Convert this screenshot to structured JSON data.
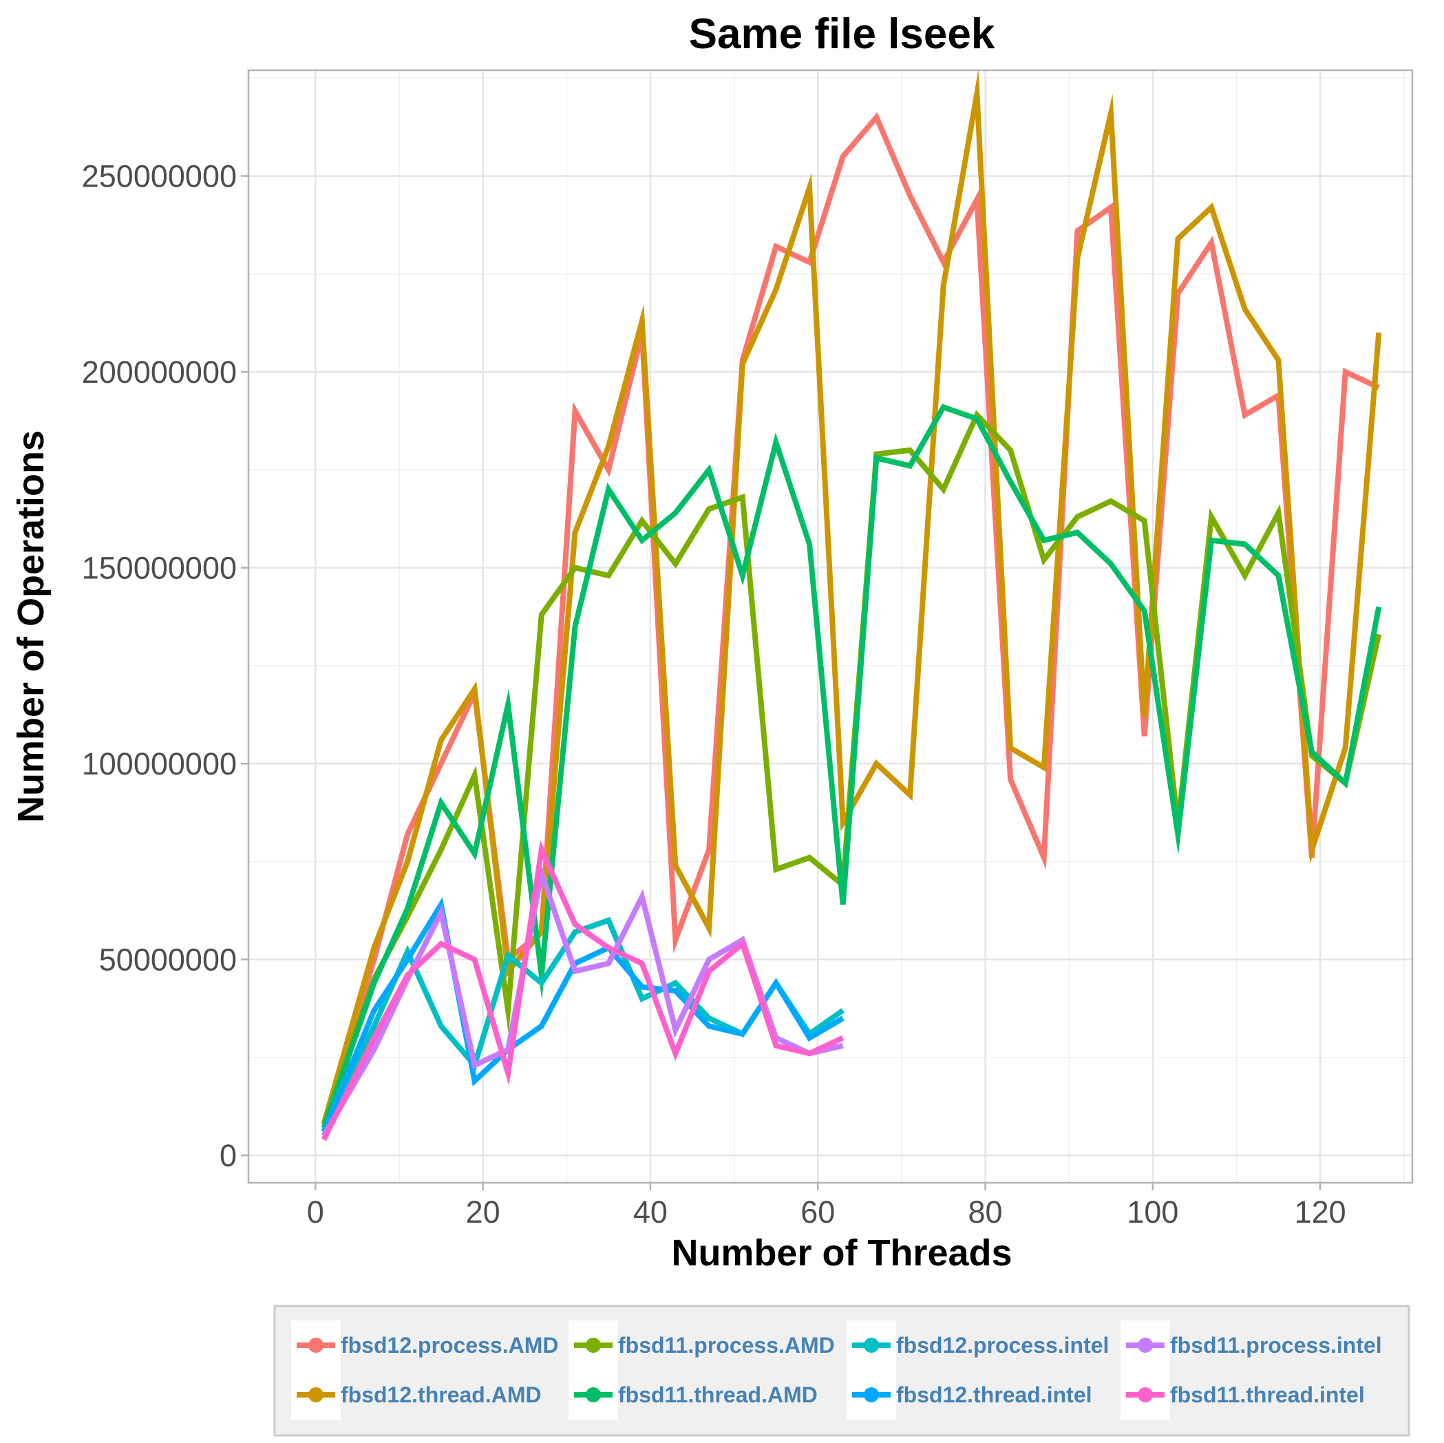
{
  "chart_data": {
    "type": "line",
    "title": "Same file lseek",
    "xlabel": "Number of Threads",
    "ylabel": "Number of Operations",
    "xlim": [
      -8,
      131
    ],
    "ylim": [
      -7000000,
      277000000
    ],
    "x_ticks": [
      0,
      20,
      40,
      60,
      80,
      100,
      120
    ],
    "y_ticks": [
      0,
      50000000,
      100000000,
      150000000,
      200000000,
      250000000
    ],
    "x_tick_labels": [
      "0",
      "20",
      "40",
      "60",
      "80",
      "100",
      "120"
    ],
    "y_tick_labels": [
      "0",
      "50000000",
      "100000000",
      "150000000",
      "200000000",
      "250000000"
    ],
    "grid": true,
    "legend_position": "bottom",
    "series": [
      {
        "name": "fbsd12.process.AMD",
        "color": "#F8766D",
        "points": [
          [
            1,
            8000000
          ],
          [
            7,
            50000000
          ],
          [
            11,
            82000000
          ],
          [
            15,
            100000000
          ],
          [
            19,
            118000000
          ],
          [
            23,
            50000000
          ],
          [
            27,
            57000000
          ],
          [
            31,
            190000000
          ],
          [
            35,
            175000000
          ],
          [
            39,
            210000000
          ],
          [
            43,
            55000000
          ],
          [
            47,
            78000000
          ],
          [
            51,
            203000000
          ],
          [
            55,
            232000000
          ],
          [
            59,
            228000000
          ],
          [
            63,
            255000000
          ],
          [
            67,
            265000000
          ],
          [
            71,
            245000000
          ],
          [
            75,
            228000000
          ],
          [
            79,
            244000000
          ],
          [
            83,
            96000000
          ],
          [
            87,
            76000000
          ],
          [
            91,
            236000000
          ],
          [
            95,
            242000000
          ],
          [
            99,
            107000000
          ],
          [
            103,
            220000000
          ],
          [
            107,
            233000000
          ],
          [
            111,
            189000000
          ],
          [
            115,
            194000000
          ],
          [
            119,
            76000000
          ],
          [
            123,
            200000000
          ],
          [
            127,
            196000000
          ]
        ]
      },
      {
        "name": "fbsd12.thread.AMD",
        "color": "#CD9600",
        "points": [
          [
            1,
            8000000
          ],
          [
            7,
            53000000
          ],
          [
            11,
            75000000
          ],
          [
            15,
            106000000
          ],
          [
            19,
            119000000
          ],
          [
            23,
            47000000
          ],
          [
            27,
            57000000
          ],
          [
            31,
            159000000
          ],
          [
            35,
            181000000
          ],
          [
            39,
            213000000
          ],
          [
            43,
            74000000
          ],
          [
            47,
            58000000
          ],
          [
            51,
            202000000
          ],
          [
            55,
            221000000
          ],
          [
            59,
            247000000
          ],
          [
            63,
            85000000
          ],
          [
            67,
            100000000
          ],
          [
            71,
            92000000
          ],
          [
            75,
            222000000
          ],
          [
            79,
            271000000
          ],
          [
            83,
            104000000
          ],
          [
            87,
            99000000
          ],
          [
            91,
            229000000
          ],
          [
            95,
            266000000
          ],
          [
            99,
            112000000
          ],
          [
            103,
            234000000
          ],
          [
            107,
            242000000
          ],
          [
            111,
            216000000
          ],
          [
            115,
            203000000
          ],
          [
            119,
            78000000
          ],
          [
            123,
            104000000
          ],
          [
            127,
            210000000
          ]
        ]
      },
      {
        "name": "fbsd11.process.AMD",
        "color": "#7CAE00",
        "points": [
          [
            1,
            8000000
          ],
          [
            7,
            45000000
          ],
          [
            11,
            61000000
          ],
          [
            15,
            78000000
          ],
          [
            19,
            97000000
          ],
          [
            23,
            37000000
          ],
          [
            27,
            138000000
          ],
          [
            31,
            150000000
          ],
          [
            35,
            148000000
          ],
          [
            39,
            162000000
          ],
          [
            43,
            151000000
          ],
          [
            47,
            165000000
          ],
          [
            51,
            168000000
          ],
          [
            55,
            73000000
          ],
          [
            59,
            76000000
          ],
          [
            63,
            69000000
          ],
          [
            67,
            179000000
          ],
          [
            71,
            180000000
          ],
          [
            75,
            170000000
          ],
          [
            79,
            189000000
          ],
          [
            83,
            180000000
          ],
          [
            87,
            152000000
          ],
          [
            91,
            163000000
          ],
          [
            95,
            167000000
          ],
          [
            99,
            162000000
          ],
          [
            103,
            84000000
          ],
          [
            107,
            163000000
          ],
          [
            111,
            148000000
          ],
          [
            115,
            164000000
          ],
          [
            119,
            102000000
          ],
          [
            123,
            95000000
          ],
          [
            127,
            133000000
          ]
        ]
      },
      {
        "name": "fbsd11.thread.AMD",
        "color": "#00BE67",
        "points": [
          [
            1,
            7000000
          ],
          [
            7,
            44000000
          ],
          [
            11,
            63000000
          ],
          [
            15,
            90000000
          ],
          [
            19,
            77000000
          ],
          [
            23,
            115000000
          ],
          [
            27,
            46000000
          ],
          [
            31,
            135000000
          ],
          [
            35,
            170000000
          ],
          [
            39,
            157000000
          ],
          [
            43,
            164000000
          ],
          [
            47,
            175000000
          ],
          [
            51,
            148000000
          ],
          [
            55,
            182000000
          ],
          [
            59,
            156000000
          ],
          [
            63,
            64000000
          ],
          [
            67,
            178000000
          ],
          [
            71,
            176000000
          ],
          [
            75,
            191000000
          ],
          [
            79,
            188000000
          ],
          [
            83,
            172000000
          ],
          [
            87,
            157000000
          ],
          [
            91,
            159000000
          ],
          [
            95,
            151000000
          ],
          [
            99,
            139000000
          ],
          [
            103,
            82000000
          ],
          [
            107,
            157000000
          ],
          [
            111,
            156000000
          ],
          [
            115,
            148000000
          ],
          [
            119,
            103000000
          ],
          [
            123,
            95000000
          ],
          [
            127,
            140000000
          ]
        ]
      },
      {
        "name": "fbsd12.process.intel",
        "color": "#00BFC4",
        "points": [
          [
            1,
            5000000
          ],
          [
            7,
            33000000
          ],
          [
            11,
            52000000
          ],
          [
            15,
            33000000
          ],
          [
            19,
            23000000
          ],
          [
            23,
            51000000
          ],
          [
            27,
            44000000
          ],
          [
            31,
            57000000
          ],
          [
            35,
            60000000
          ],
          [
            39,
            40000000
          ],
          [
            43,
            44000000
          ],
          [
            47,
            35000000
          ],
          [
            51,
            31000000
          ],
          [
            55,
            44000000
          ],
          [
            59,
            31000000
          ],
          [
            63,
            37000000
          ]
        ]
      },
      {
        "name": "fbsd12.thread.intel",
        "color": "#00A9FF",
        "points": [
          [
            1,
            6000000
          ],
          [
            7,
            37000000
          ],
          [
            11,
            50000000
          ],
          [
            15,
            64000000
          ],
          [
            19,
            19000000
          ],
          [
            23,
            27000000
          ],
          [
            27,
            33000000
          ],
          [
            31,
            49000000
          ],
          [
            35,
            53000000
          ],
          [
            39,
            43000000
          ],
          [
            43,
            42000000
          ],
          [
            47,
            33000000
          ],
          [
            51,
            31000000
          ],
          [
            55,
            44000000
          ],
          [
            59,
            30000000
          ],
          [
            63,
            35000000
          ]
        ]
      },
      {
        "name": "fbsd11.process.intel",
        "color": "#C77CFF",
        "points": [
          [
            1,
            5000000
          ],
          [
            7,
            27000000
          ],
          [
            11,
            45000000
          ],
          [
            15,
            62000000
          ],
          [
            19,
            23000000
          ],
          [
            23,
            27000000
          ],
          [
            27,
            72000000
          ],
          [
            31,
            47000000
          ],
          [
            35,
            49000000
          ],
          [
            39,
            66000000
          ],
          [
            43,
            32000000
          ],
          [
            47,
            50000000
          ],
          [
            51,
            55000000
          ],
          [
            55,
            30000000
          ],
          [
            59,
            26000000
          ],
          [
            63,
            28000000
          ]
        ]
      },
      {
        "name": "fbsd11.thread.intel",
        "color": "#FF61CC",
        "points": [
          [
            1,
            4000000
          ],
          [
            7,
            30000000
          ],
          [
            11,
            46000000
          ],
          [
            15,
            54000000
          ],
          [
            19,
            50000000
          ],
          [
            23,
            21000000
          ],
          [
            27,
            78000000
          ],
          [
            31,
            59000000
          ],
          [
            35,
            53000000
          ],
          [
            39,
            49000000
          ],
          [
            43,
            26000000
          ],
          [
            47,
            47000000
          ],
          [
            51,
            54000000
          ],
          [
            55,
            28000000
          ],
          [
            59,
            26000000
          ],
          [
            63,
            30000000
          ]
        ]
      }
    ],
    "legend_order": [
      "fbsd12.process.AMD",
      "fbsd11.process.AMD",
      "fbsd12.process.intel",
      "fbsd11.process.intel",
      "fbsd12.thread.AMD",
      "fbsd11.thread.AMD",
      "fbsd12.thread.intel",
      "fbsd11.thread.intel"
    ]
  }
}
